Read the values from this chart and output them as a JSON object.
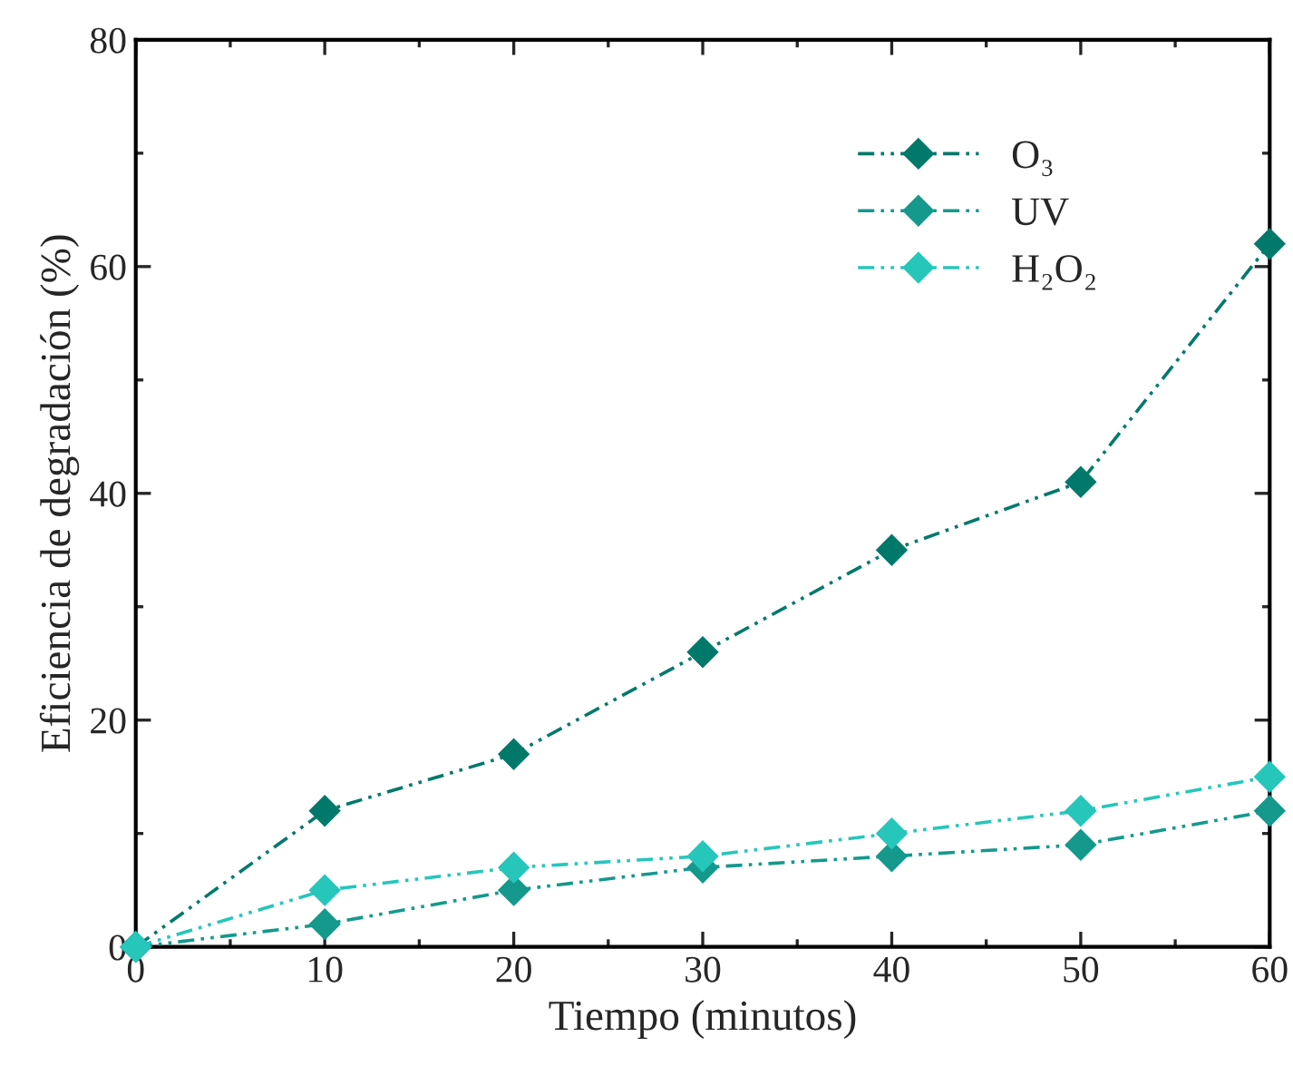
{
  "chart_data": {
    "type": "line",
    "xlabel": "Tiempo (minutos)",
    "ylabel": "Eficiencia de degradación (%)",
    "x": [
      0,
      10,
      20,
      30,
      40,
      50,
      60
    ],
    "series": [
      {
        "name": "O₃",
        "color": "#00796b",
        "values": [
          0,
          12,
          17,
          26,
          35,
          41,
          62
        ]
      },
      {
        "name": "UV",
        "color": "#14998c",
        "values": [
          0,
          2,
          5,
          7,
          8,
          9,
          12
        ]
      },
      {
        "name": "H₂O₂",
        "color": "#26c6bb",
        "values": [
          0,
          5,
          7,
          8,
          10,
          12,
          15
        ]
      }
    ],
    "xlim": [
      0,
      60
    ],
    "xticks": [
      0,
      10,
      20,
      30,
      40,
      50,
      60
    ],
    "ylim": [
      0,
      80
    ],
    "yticks": [
      0,
      20,
      40,
      60,
      80
    ],
    "grid": false,
    "legend": "top right",
    "marker": "diamond",
    "line_style": "dashed"
  }
}
